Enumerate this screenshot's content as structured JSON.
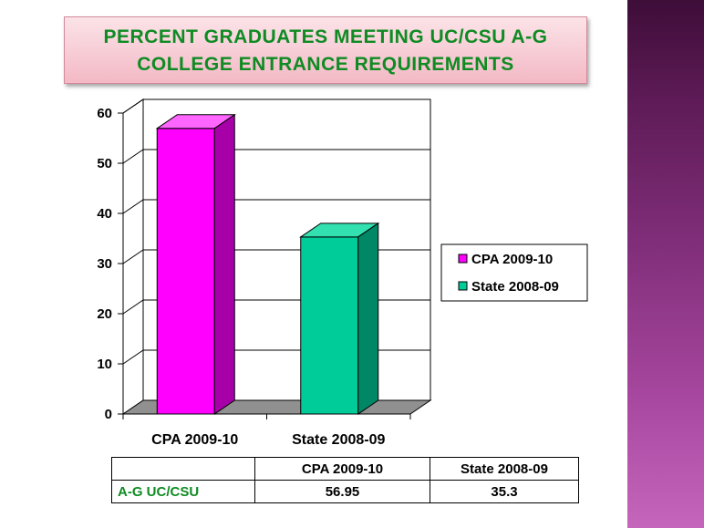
{
  "title": {
    "line1": "PERCENT GRADUATES MEETING UC/CSU A-G",
    "line2": "COLLEGE ENTRANCE REQUIREMENTS"
  },
  "colors": {
    "title_text": "#0f8b23",
    "cpa_bar": "#ff00ff",
    "state_bar": "#00cc99",
    "side_band": "#7f2d78",
    "title_bg": "#f3b9c5"
  },
  "chart_data": {
    "type": "bar",
    "categories": [
      "CPA 2009-10",
      "State 2008-09"
    ],
    "values": [
      56.95,
      35.3
    ],
    "ylim": [
      0,
      60
    ],
    "yticks": [
      "0",
      "10",
      "20",
      "30",
      "40",
      "50",
      "60"
    ],
    "grid": true,
    "legend_position": "right",
    "legend": [
      "CPA 2009-10",
      "State 2008-09"
    ],
    "title": "",
    "xlabel": "",
    "ylabel": ""
  },
  "table": {
    "headers": [
      "",
      "CPA 2009-10",
      "State 2008-09"
    ],
    "rows": [
      {
        "label": "A-G UC/CSU",
        "values": [
          "56.95",
          "35.3"
        ]
      }
    ]
  }
}
